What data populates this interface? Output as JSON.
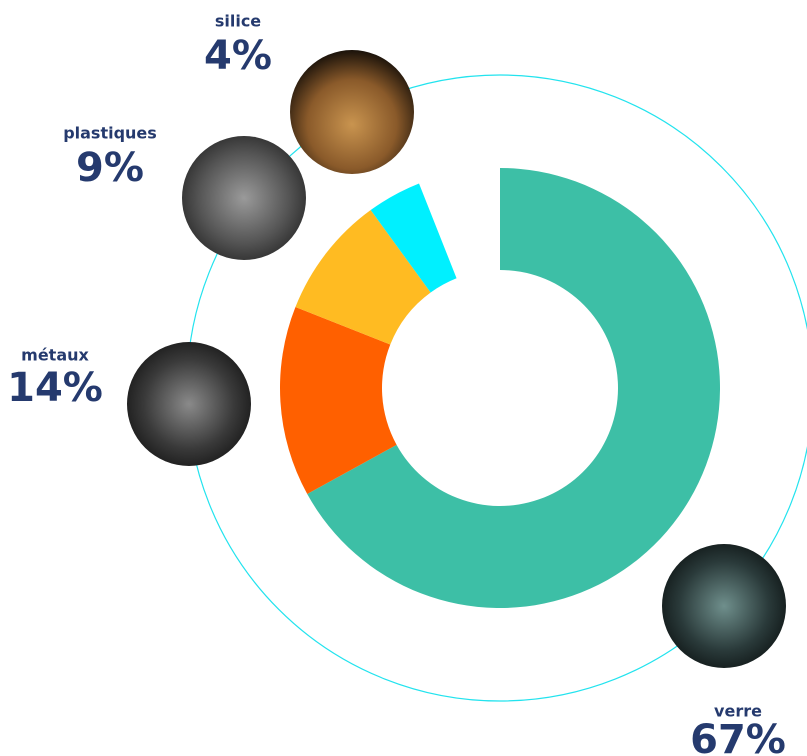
{
  "chart_data": {
    "type": "donut",
    "categories": [
      "verre",
      "métaux",
      "plastiques",
      "silice"
    ],
    "values": [
      67,
      14,
      9,
      4
    ],
    "value_labels": [
      "67%",
      "14%",
      "9%",
      "4%"
    ],
    "colors": [
      "#3dbfa6",
      "#ff6000",
      "#ffbb22",
      "#00f0ff"
    ]
  }
}
